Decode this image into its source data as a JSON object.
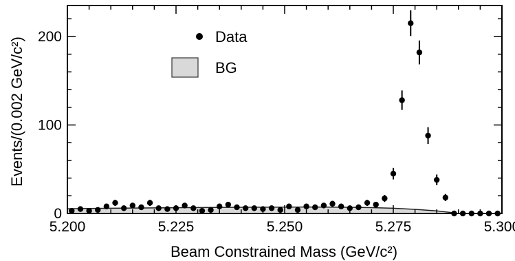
{
  "chart_data": {
    "type": "scatter",
    "title": "",
    "xlabel": "Beam Constrained Mass (GeV/c²)",
    "ylabel": "Events/(0.002 GeV/c²)",
    "xlim": [
      5.2,
      5.3
    ],
    "ylim": [
      0,
      235
    ],
    "xticks": [
      "5.200",
      "5.225",
      "5.250",
      "5.275",
      "5.300"
    ],
    "xtick_values": [
      5.2,
      5.225,
      5.25,
      5.275,
      5.3
    ],
    "yticks": [
      "0",
      "100",
      "200"
    ],
    "ytick_values": [
      0,
      100,
      200
    ],
    "grid": false,
    "legend_position": "top-left",
    "legend": [
      {
        "label": "Data",
        "marker": "filled-circle"
      },
      {
        "label": "BG",
        "marker": "gray-box"
      }
    ],
    "series": [
      {
        "name": "Data",
        "style": "points-with-error-bars",
        "x": [
          5.201,
          5.203,
          5.205,
          5.207,
          5.209,
          5.211,
          5.213,
          5.215,
          5.217,
          5.219,
          5.221,
          5.223,
          5.225,
          5.227,
          5.229,
          5.231,
          5.233,
          5.235,
          5.237,
          5.239,
          5.241,
          5.243,
          5.245,
          5.247,
          5.249,
          5.251,
          5.253,
          5.255,
          5.257,
          5.259,
          5.261,
          5.263,
          5.265,
          5.267,
          5.269,
          5.271,
          5.273,
          5.275,
          5.277,
          5.279,
          5.281,
          5.283,
          5.285,
          5.287,
          5.289,
          5.291,
          5.293,
          5.295,
          5.297,
          5.299
        ],
        "y": [
          3,
          5,
          3,
          4,
          8,
          12,
          6,
          9,
          7,
          12,
          6,
          5,
          6,
          9,
          6,
          3,
          4,
          8,
          10,
          7,
          6,
          6,
          5,
          6,
          4,
          8,
          4,
          8,
          7,
          9,
          11,
          8,
          6,
          7,
          12,
          10,
          17,
          45,
          128,
          215,
          182,
          88,
          38,
          18,
          0,
          0,
          0,
          0,
          0,
          0
        ],
        "yerr": [
          2,
          2.3,
          2,
          2,
          2.8,
          3.5,
          2.5,
          3,
          2.6,
          3.5,
          2.5,
          2.3,
          2.5,
          3,
          2.5,
          2,
          2,
          2.8,
          3.2,
          2.6,
          2.5,
          2.5,
          2.3,
          2.5,
          2,
          2.8,
          2,
          2.8,
          2.6,
          3,
          3.3,
          2.8,
          2.5,
          2.6,
          3.5,
          3.2,
          4,
          6.5,
          11,
          14.5,
          13.5,
          9.5,
          6,
          4,
          0,
          0,
          0,
          0,
          0,
          0
        ]
      },
      {
        "name": "BG",
        "style": "filled-area",
        "color": "#d9d9d9",
        "x": [
          5.2,
          5.21,
          5.22,
          5.23,
          5.24,
          5.25,
          5.255,
          5.26,
          5.265,
          5.27,
          5.275,
          5.28,
          5.285,
          5.2885,
          5.2898
        ],
        "y": [
          5.4,
          5.9,
          6.3,
          6.7,
          7.0,
          7.2,
          7.25,
          7.2,
          7.0,
          6.6,
          5.9,
          4.7,
          2.9,
          1.0,
          0
        ]
      }
    ]
  }
}
